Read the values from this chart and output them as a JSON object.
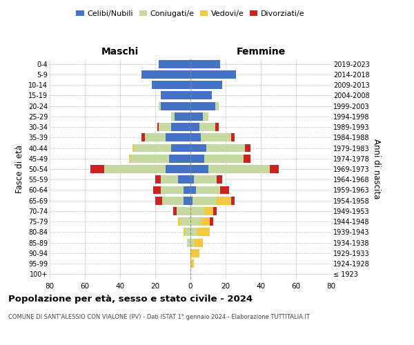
{
  "age_groups": [
    "100+",
    "95-99",
    "90-94",
    "85-89",
    "80-84",
    "75-79",
    "70-74",
    "65-69",
    "60-64",
    "55-59",
    "50-54",
    "45-49",
    "40-44",
    "35-39",
    "30-34",
    "25-29",
    "20-24",
    "15-19",
    "10-14",
    "5-9",
    "0-4"
  ],
  "birth_years": [
    "≤ 1923",
    "1924-1928",
    "1929-1933",
    "1934-1938",
    "1939-1943",
    "1944-1948",
    "1949-1953",
    "1954-1958",
    "1959-1963",
    "1964-1968",
    "1969-1973",
    "1974-1978",
    "1979-1983",
    "1984-1988",
    "1989-1993",
    "1994-1998",
    "1999-2003",
    "2004-2008",
    "2009-2013",
    "2014-2018",
    "2019-2023"
  ],
  "maschi": {
    "celibi": [
      0,
      0,
      0,
      0,
      0,
      0,
      0,
      4,
      4,
      7,
      14,
      12,
      11,
      14,
      11,
      9,
      17,
      17,
      22,
      28,
      18
    ],
    "coniugati": [
      0,
      0,
      0,
      2,
      3,
      6,
      8,
      12,
      13,
      10,
      35,
      22,
      21,
      12,
      7,
      2,
      1,
      0,
      0,
      0,
      0
    ],
    "vedovi": [
      0,
      0,
      0,
      0,
      1,
      1,
      0,
      0,
      0,
      0,
      0,
      1,
      1,
      0,
      0,
      0,
      0,
      0,
      0,
      0,
      0
    ],
    "divorziati": [
      0,
      0,
      0,
      0,
      0,
      0,
      2,
      4,
      4,
      3,
      8,
      0,
      0,
      2,
      1,
      0,
      0,
      0,
      0,
      0,
      0
    ]
  },
  "femmine": {
    "nubili": [
      0,
      0,
      0,
      0,
      0,
      0,
      0,
      1,
      3,
      2,
      10,
      8,
      9,
      6,
      5,
      7,
      14,
      12,
      18,
      26,
      17
    ],
    "coniugate": [
      0,
      0,
      0,
      2,
      4,
      6,
      8,
      14,
      14,
      13,
      35,
      22,
      22,
      17,
      9,
      3,
      2,
      0,
      0,
      0,
      0
    ],
    "vedove": [
      0,
      2,
      5,
      5,
      7,
      5,
      5,
      8,
      0,
      0,
      0,
      0,
      0,
      0,
      0,
      0,
      0,
      0,
      0,
      0,
      0
    ],
    "divorziate": [
      0,
      0,
      0,
      0,
      0,
      2,
      2,
      2,
      5,
      3,
      5,
      4,
      3,
      2,
      2,
      0,
      0,
      0,
      0,
      0,
      0
    ]
  },
  "colors": {
    "celibi": "#4472c4",
    "coniugati": "#c5d9a0",
    "vedovi": "#f5c842",
    "divorziati": "#cc2222"
  },
  "xlim": 80,
  "title": "Popolazione per età, sesso e stato civile - 2024",
  "subtitle": "COMUNE DI SANT'ALESSIO CON VIALONE (PV) - Dati ISTAT 1° gennaio 2024 - Elaborazione TUTTITALIA.IT",
  "ylabel_left": "Fasce di età",
  "ylabel_right": "Anni di nascita",
  "label_maschi": "Maschi",
  "label_femmine": "Femmine",
  "legend_labels": [
    "Celibi/Nubili",
    "Coniugati/e",
    "Vedovi/e",
    "Divorziati/e"
  ]
}
